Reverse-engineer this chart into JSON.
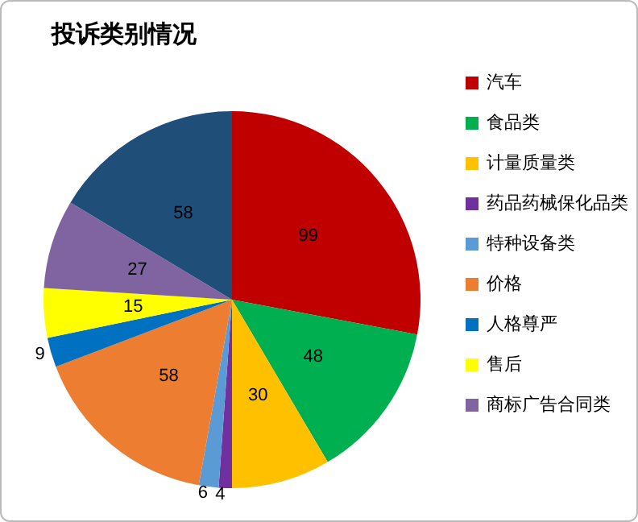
{
  "chart_data": {
    "type": "pie",
    "title": "投诉类别情况",
    "categories": [
      "汽车",
      "食品类",
      "计量质量类",
      "药品药械保化品类",
      "特种设备类",
      "价格",
      "人格尊严",
      "售后",
      "商标广告合同类",
      null
    ],
    "values": [
      99,
      48,
      30,
      4,
      6,
      58,
      9,
      15,
      27,
      58
    ],
    "colors": [
      "#c00000",
      "#00b050",
      "#ffc000",
      "#7030a0",
      "#5b9bd5",
      "#ed7d31",
      "#0070c0",
      "#ffff00",
      "#8064a2",
      "#1f4e79"
    ],
    "data_labels": true,
    "legend": "right"
  }
}
